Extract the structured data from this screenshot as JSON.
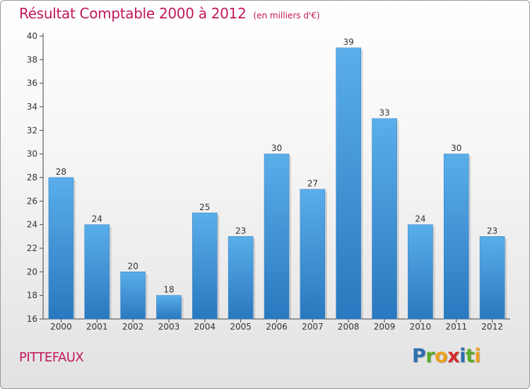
{
  "chart_data": {
    "type": "bar",
    "title": "Résultat Comptable 2000 à 2012",
    "unit_note": "(en milliers d'€)",
    "xlabel": "",
    "ylabel": "",
    "categories": [
      "2000",
      "2001",
      "2002",
      "2003",
      "2004",
      "2005",
      "2006",
      "2007",
      "2008",
      "2009",
      "2010",
      "2011",
      "2012"
    ],
    "values": [
      28,
      24,
      20,
      18,
      25,
      23,
      30,
      27,
      39,
      33,
      24,
      30,
      23
    ],
    "ylim": [
      16,
      40
    ],
    "yticks": [
      16,
      18,
      20,
      22,
      24,
      26,
      28,
      30,
      32,
      34,
      36,
      38,
      40
    ],
    "grid": false,
    "bar_color_top": "#5aaeea",
    "bar_color_bottom": "#2a78bf"
  },
  "commune": "PITTEFAUX",
  "logo": {
    "letters": [
      "P",
      "r",
      "o",
      "x",
      "i",
      "t",
      "i"
    ],
    "colors": [
      "#2e6fb0",
      "#5aaa2a",
      "#f0a020",
      "#d22a2a",
      "#2e6fb0",
      "#5aaa2a",
      "#f0a020"
    ]
  },
  "colors": {
    "accent": "#c2185b",
    "axis": "#444444"
  }
}
